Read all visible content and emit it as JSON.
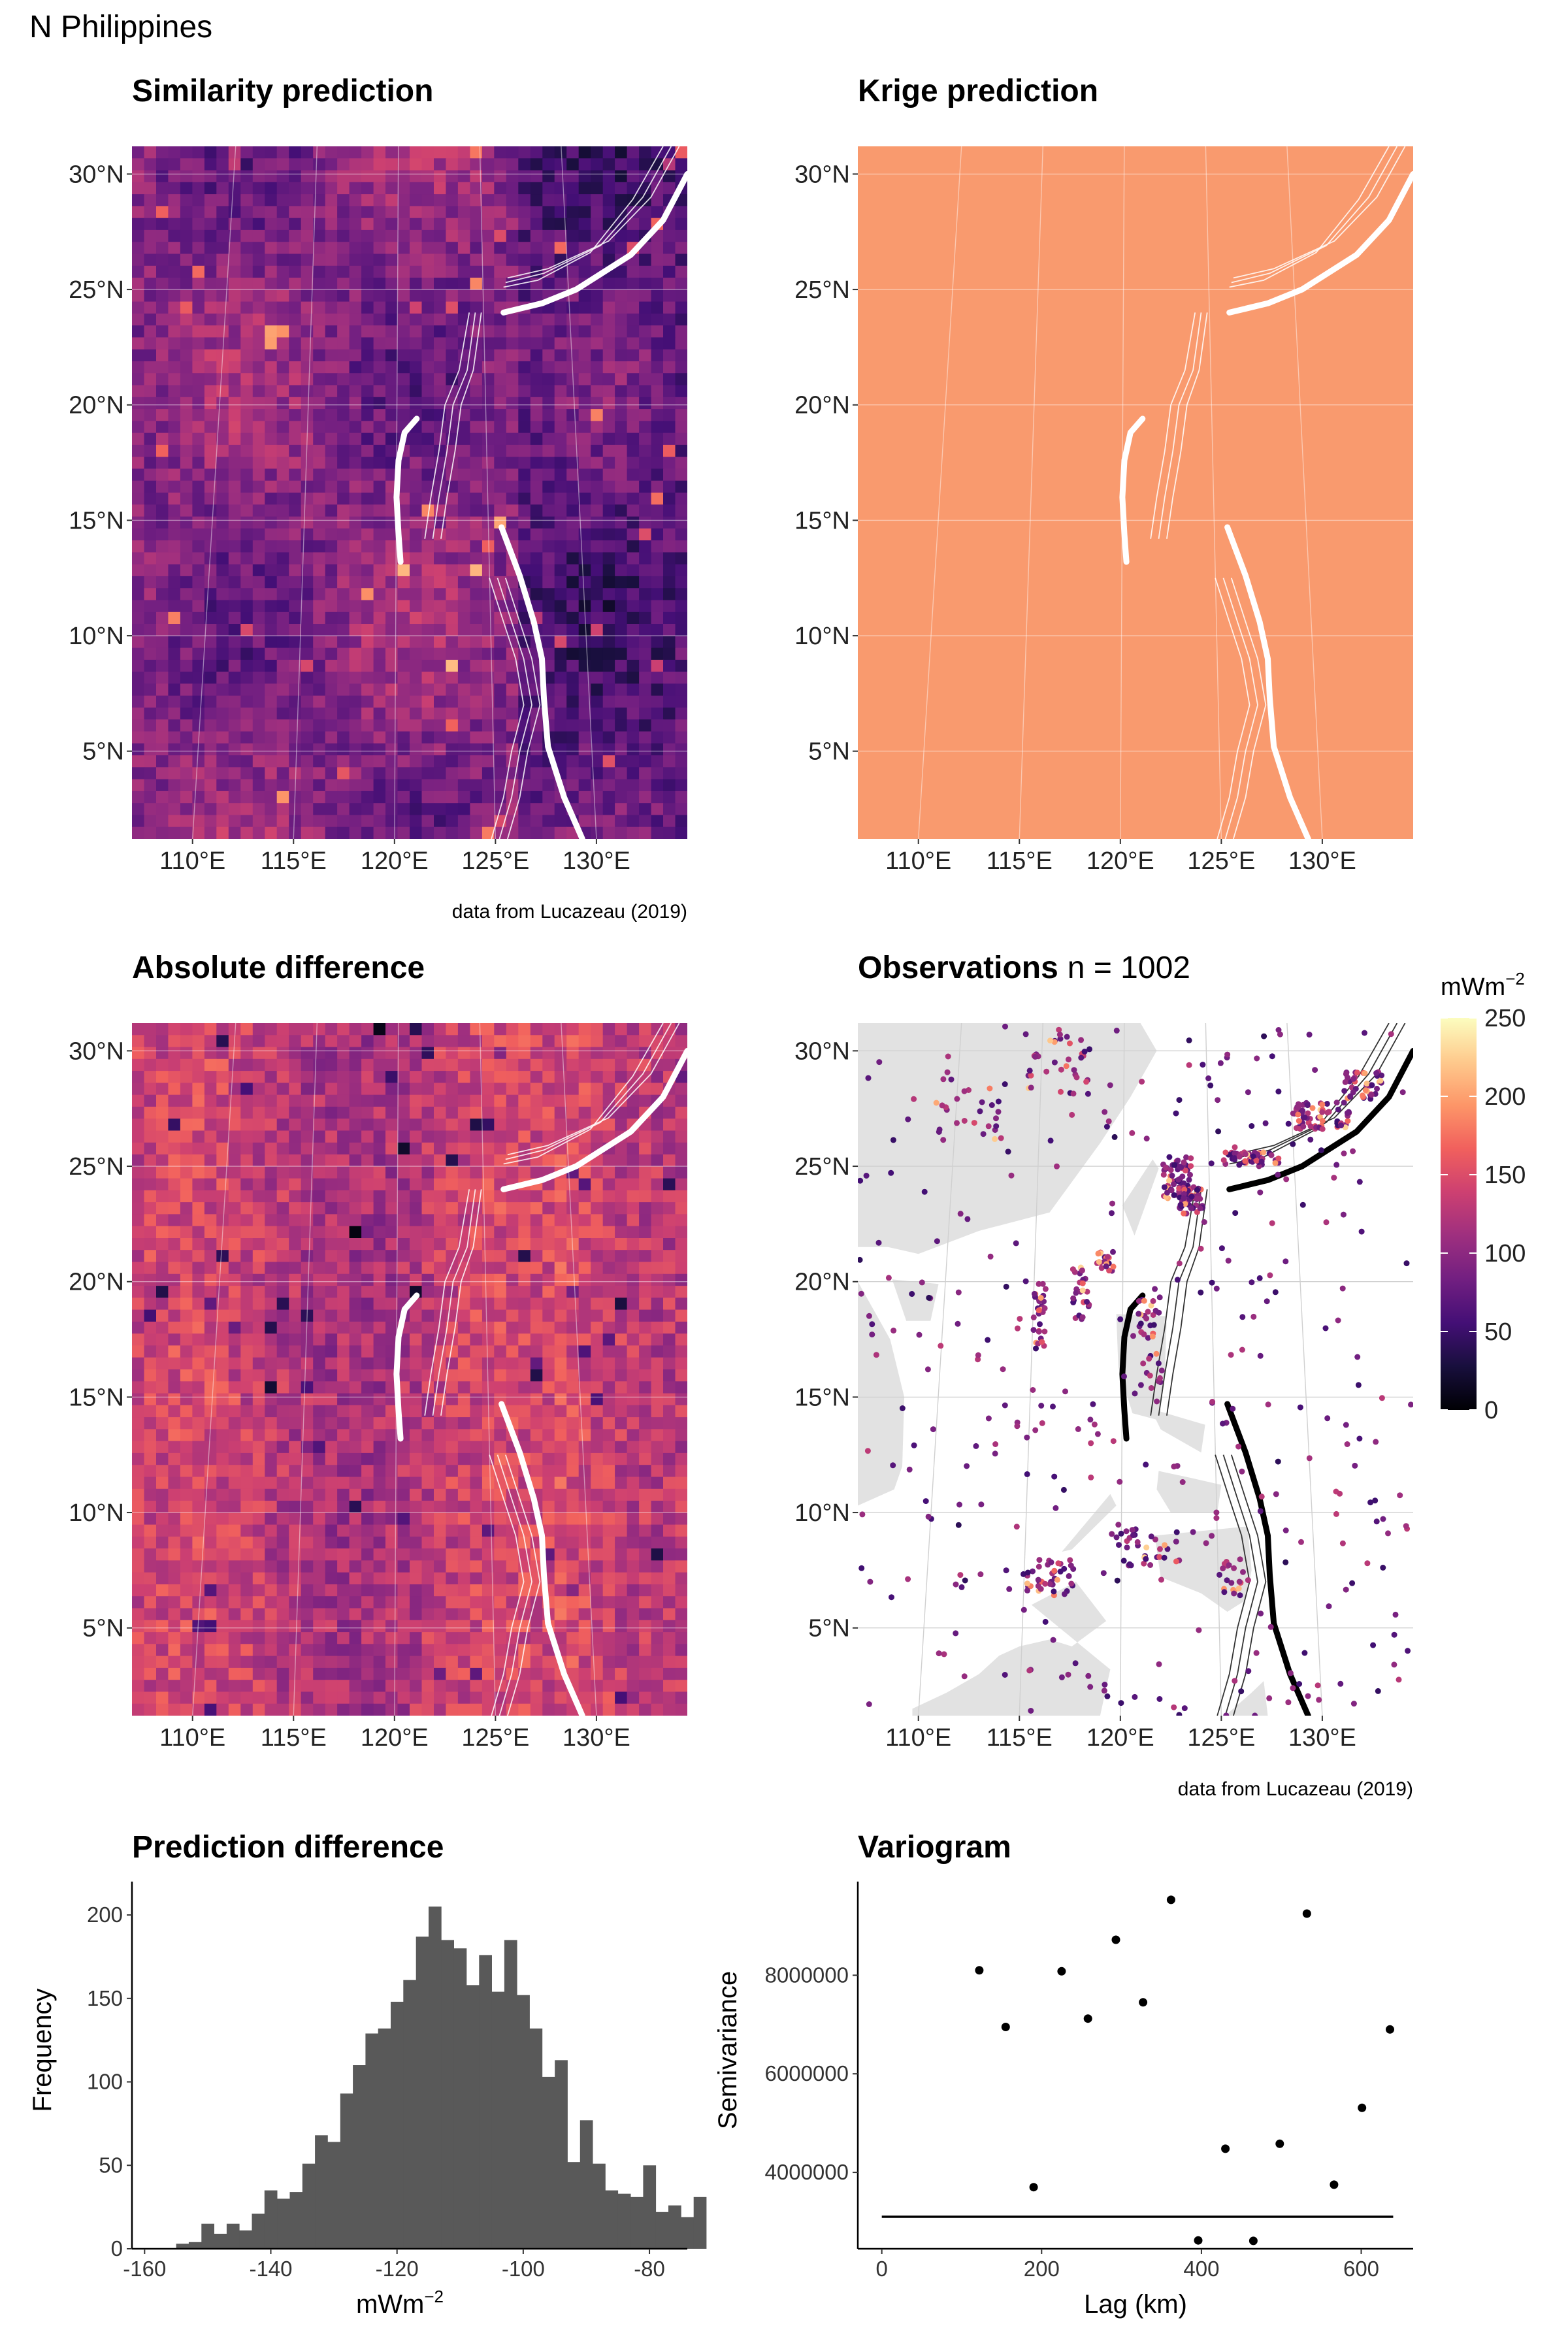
{
  "figure": {
    "title": "N Philippines",
    "caption": "data from Lucazeau (2019)"
  },
  "maps": {
    "lat_labels": [
      "30°N",
      "25°N",
      "20°N",
      "15°N",
      "10°N",
      "5°N"
    ],
    "lat_values": [
      30,
      25,
      20,
      15,
      10,
      5
    ],
    "lon_labels": [
      "110°E",
      "115°E",
      "120°E",
      "125°E",
      "130°E"
    ],
    "lon_values": [
      110,
      115,
      120,
      125,
      130
    ],
    "extent": {
      "lon": [
        107,
        134.5
      ],
      "lat": [
        1.2,
        31.2
      ]
    },
    "panels": [
      {
        "id": "similarity",
        "title": "Similarity prediction",
        "subtitle": ""
      },
      {
        "id": "krige",
        "title": "Krige prediction",
        "subtitle": ""
      },
      {
        "id": "absdiff",
        "title": "Absolute difference",
        "subtitle": ""
      },
      {
        "id": "observations",
        "title": "Observations",
        "subtitle": "n = 1002"
      }
    ]
  },
  "colorbar": {
    "unit": "mWm",
    "unit_exp": "−2",
    "ticks": [
      "250",
      "200",
      "150",
      "100",
      "50",
      "0"
    ],
    "tick_values": [
      250,
      200,
      150,
      100,
      50,
      0
    ],
    "range": [
      0,
      250
    ],
    "colors": [
      "#000004",
      "#180f3d",
      "#440f76",
      "#721f81",
      "#9e2f7f",
      "#cd4071",
      "#f1605d",
      "#fd9668",
      "#feca8d",
      "#fcfdbf"
    ]
  },
  "colors": {
    "krige_fill": "#f99a6e",
    "land": "#e2e2e2",
    "histogram_bar": "#595959",
    "trench_map": "#ffffff",
    "trench_obs": "#000000"
  },
  "chart_data": [
    {
      "type": "bar",
      "title": "Prediction difference",
      "xlabel": "mWm",
      "xlabel_exp": "−2",
      "ylabel": "Frequency",
      "xlim": [
        -162,
        -74
      ],
      "ylim": [
        0,
        220
      ],
      "x_ticks": [
        -160,
        -140,
        -120,
        -100,
        -80
      ],
      "x_tick_labels": [
        "-160",
        "-140",
        "-120",
        "-100",
        "-80"
      ],
      "y_ticks": [
        0,
        50,
        100,
        150,
        200
      ],
      "y_tick_labels": [
        "0",
        "50",
        "100",
        "150",
        "200"
      ],
      "bin_start": -155,
      "bin_width": 2,
      "values": [
        3,
        4,
        15,
        9,
        15,
        11,
        21,
        35,
        30,
        34,
        51,
        68,
        64,
        93,
        110,
        129,
        132,
        148,
        161,
        187,
        205,
        185,
        180,
        158,
        176,
        154,
        185,
        152,
        132,
        103,
        113,
        52,
        77,
        51,
        35,
        33,
        31,
        50,
        22,
        26,
        19,
        31
      ]
    },
    {
      "type": "scatter",
      "title": "Variogram",
      "xlabel": "Lag (km)",
      "ylabel": "Semivariance",
      "xlim": [
        -30,
        665
      ],
      "ylim": [
        2450000,
        9900000
      ],
      "x_ticks": [
        0,
        200,
        400,
        600
      ],
      "x_tick_labels": [
        "0",
        "200",
        "400",
        "600"
      ],
      "y_ticks": [
        4000000,
        6000000,
        8000000
      ],
      "y_tick_labels": [
        "4000000",
        "6000000",
        "8000000"
      ],
      "points": [
        {
          "x": 122,
          "y": 8100000
        },
        {
          "x": 155,
          "y": 6950000
        },
        {
          "x": 190,
          "y": 3700000
        },
        {
          "x": 225,
          "y": 8080000
        },
        {
          "x": 258,
          "y": 7120000
        },
        {
          "x": 293,
          "y": 8720000
        },
        {
          "x": 327,
          "y": 7450000
        },
        {
          "x": 362,
          "y": 9530000
        },
        {
          "x": 396,
          "y": 2620000
        },
        {
          "x": 430,
          "y": 4480000
        },
        {
          "x": 465,
          "y": 2610000
        },
        {
          "x": 498,
          "y": 4580000
        },
        {
          "x": 532,
          "y": 9250000
        },
        {
          "x": 566,
          "y": 3750000
        },
        {
          "x": 601,
          "y": 5310000
        },
        {
          "x": 636,
          "y": 6900000
        }
      ],
      "fit_line": [
        {
          "x": 0,
          "y": 3100000
        },
        {
          "x": 640,
          "y": 3100000
        }
      ]
    }
  ]
}
